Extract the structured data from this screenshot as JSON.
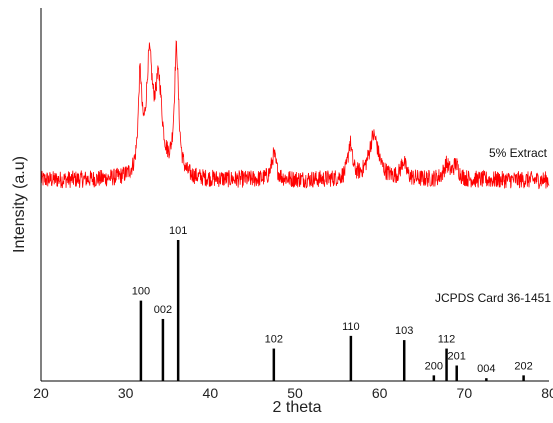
{
  "chart_data": {
    "type": "line",
    "xlabel": "2 theta",
    "ylabel": "Intensity (a.u)",
    "xlim": [
      20,
      80
    ],
    "x_ticks": [
      "20",
      "30",
      "40",
      "50",
      "60",
      "70",
      "80"
    ],
    "series_line": {
      "name": "5% Extract",
      "color": "#ff0000",
      "baseline": 0.2,
      "noise": 0.05,
      "slope": 0.0,
      "peaks": [
        {
          "x": 31.7,
          "height": 0.52,
          "width": 0.25
        },
        {
          "x": 32.8,
          "height": 0.62,
          "width": 0.45
        },
        {
          "x": 33.9,
          "height": 0.5,
          "width": 0.5
        },
        {
          "x": 36.0,
          "height": 0.72,
          "width": 0.3
        },
        {
          "x": 47.5,
          "height": 0.14,
          "width": 0.35
        },
        {
          "x": 56.5,
          "height": 0.2,
          "width": 0.3
        },
        {
          "x": 59.3,
          "height": 0.25,
          "width": 0.7
        },
        {
          "x": 62.8,
          "height": 0.1,
          "width": 0.35
        },
        {
          "x": 67.9,
          "height": 0.08,
          "width": 0.4
        },
        {
          "x": 69.0,
          "height": 0.08,
          "width": 0.4
        }
      ]
    },
    "reference": {
      "name": "JCPDS Card 36-1451",
      "color": "#000000",
      "peaks": [
        {
          "x": 31.8,
          "label": "100",
          "value": 57
        },
        {
          "x": 34.4,
          "label": "002",
          "value": 44
        },
        {
          "x": 36.2,
          "label": "101",
          "value": 100
        },
        {
          "x": 47.5,
          "label": "102",
          "value": 23
        },
        {
          "x": 56.6,
          "label": "110",
          "value": 32
        },
        {
          "x": 62.9,
          "label": "103",
          "value": 29
        },
        {
          "x": 66.4,
          "label": "200",
          "value": 4
        },
        {
          "x": 67.9,
          "label": "112",
          "value": 23
        },
        {
          "x": 69.1,
          "label": "201",
          "value": 11
        },
        {
          "x": 72.6,
          "label": "004",
          "value": 2
        },
        {
          "x": 77.0,
          "label": "202",
          "value": 4
        }
      ]
    },
    "annotations": [
      {
        "text": "5% Extract"
      },
      {
        "text": "JCPDS Card 36-1451"
      }
    ]
  }
}
